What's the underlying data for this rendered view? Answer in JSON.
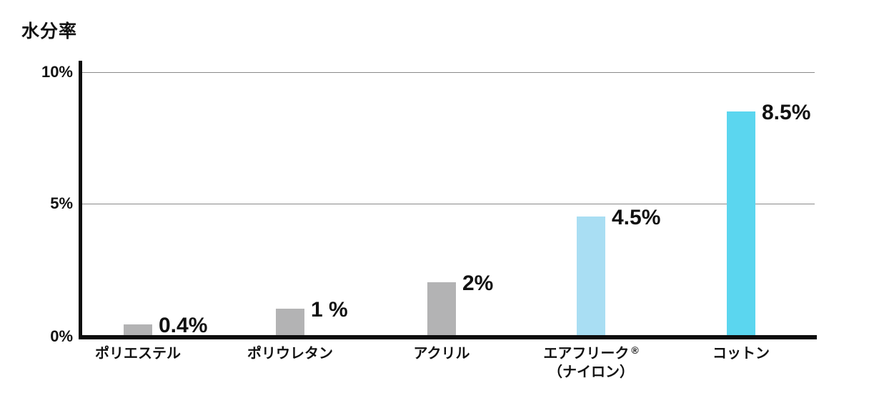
{
  "title": "水分率",
  "chart_data": {
    "type": "bar",
    "title": "水分率",
    "categories": [
      "ポリエステル",
      "ポリウレタン",
      "アクリル",
      "エアフリーク®（ナイロン）",
      "コットン"
    ],
    "values": [
      0.4,
      1,
      2,
      4.5,
      8.5
    ],
    "value_labels": [
      "0.4%",
      "1 %",
      "2%",
      "4.5%",
      "8.5%"
    ],
    "xlabel": "",
    "ylabel": "水分率",
    "ylim": [
      0,
      10
    ],
    "yticks": [
      {
        "value": 0,
        "label": "0%"
      },
      {
        "value": 5,
        "label": "5%"
      },
      {
        "value": 10,
        "label": "10%"
      }
    ],
    "grid": true,
    "legend": false,
    "colors": {
      "gray_bar": "#b3b3b4",
      "light_blue_bar": "#a9def3",
      "cyan_bar": "#5bd6ef",
      "axis": "#0d0d0d",
      "gridline": "#8a8a8a",
      "text": "#111111"
    },
    "bars": [
      {
        "category": {
          "line1": "ポリエステル"
        },
        "value": 0.4,
        "label": "0.4%",
        "color": "#b3b3b4"
      },
      {
        "category": {
          "line1": "ポリウレタン"
        },
        "value": 1.0,
        "label": "1 %",
        "color": "#b3b3b4"
      },
      {
        "category": {
          "line1": "アクリル"
        },
        "value": 2.0,
        "label": "2%",
        "color": "#b3b3b4"
      },
      {
        "category": {
          "line1": "エアフリーク",
          "mark": "®",
          "line2": "（ナイロン）"
        },
        "value": 4.5,
        "label": "4.5%",
        "color": "#a9def3"
      },
      {
        "category": {
          "line1": "コットン"
        },
        "value": 8.5,
        "label": "8.5%",
        "color": "#5bd6ef"
      }
    ]
  }
}
